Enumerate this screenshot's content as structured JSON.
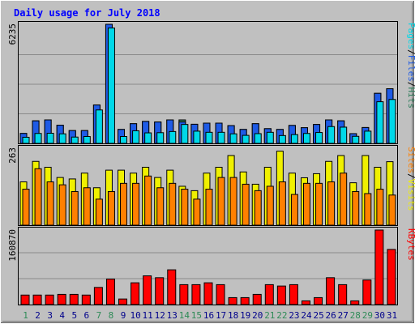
{
  "chart_data": [
    {
      "type": "bar",
      "panel": "hits-files-pages",
      "title": "Daily usage for July 2018",
      "categories": [
        "1",
        "2",
        "3",
        "4",
        "5",
        "6",
        "7",
        "8",
        "9",
        "10",
        "11",
        "12",
        "13",
        "14",
        "15",
        "16",
        "17",
        "18",
        "19",
        "20",
        "21",
        "22",
        "23",
        "24",
        "25",
        "26",
        "27",
        "28",
        "29",
        "30",
        "31"
      ],
      "weekend_categories": [
        "1",
        "7",
        "8",
        "14",
        "15",
        "21",
        "22",
        "28",
        "29"
      ],
      "ymax_label": "6235",
      "ylim": [
        0,
        6235
      ],
      "axis_label_parts": [
        "Pages",
        "/",
        "Files",
        "/",
        "Hits"
      ],
      "series": [
        {
          "name": "Hits",
          "color": "#2E7D5B",
          "values": [
            520,
            1180,
            1230,
            950,
            670,
            670,
            2010,
            6235,
            730,
            1030,
            1150,
            1120,
            1230,
            1230,
            1000,
            1060,
            1060,
            930,
            730,
            1030,
            770,
            730,
            940,
            820,
            990,
            1230,
            1180,
            510,
            830,
            2620,
            2860
          ]
        },
        {
          "name": "Files",
          "color": "#1E5BE6",
          "values": [
            520,
            1180,
            1230,
            950,
            670,
            670,
            2010,
            6235,
            730,
            1030,
            1150,
            1120,
            1230,
            1120,
            1000,
            1060,
            1060,
            930,
            730,
            1030,
            770,
            730,
            940,
            820,
            990,
            1230,
            1180,
            510,
            830,
            2620,
            2860
          ]
        },
        {
          "name": "Pages",
          "color": "#00D8E8",
          "values": [
            320,
            520,
            530,
            500,
            330,
            360,
            1750,
            6040,
            360,
            660,
            550,
            560,
            620,
            990,
            640,
            580,
            580,
            500,
            420,
            510,
            580,
            410,
            460,
            520,
            570,
            880,
            850,
            370,
            640,
            2180,
            2300
          ]
        }
      ]
    },
    {
      "type": "bar",
      "panel": "visits-sites",
      "ymax_label": "263",
      "ylim": [
        0,
        263
      ],
      "axis_label_parts": [
        "Sites",
        "/",
        "Visits"
      ],
      "series": [
        {
          "name": "Visits",
          "color": "#F0F000",
          "values": [
            148,
            218,
            198,
            163,
            158,
            178,
            128,
            188,
            188,
            178,
            198,
            163,
            188,
            133,
            118,
            178,
            198,
            238,
            182,
            140,
            198,
            253,
            178,
            162,
            176,
            218,
            238,
            145,
            238,
            198,
            217
          ]
        },
        {
          "name": "Sites",
          "color": "#FF8000",
          "values": [
            123,
            193,
            148,
            138,
            115,
            128,
            89,
            115,
            143,
            143,
            168,
            128,
            143,
            123,
            89,
            123,
            163,
            163,
            140,
            118,
            133,
            148,
            105,
            143,
            143,
            148,
            178,
            115,
            108,
            123,
            103
          ]
        }
      ]
    },
    {
      "type": "bar",
      "panel": "kbytes",
      "ymax_label": "160870",
      "ylim": [
        0,
        160870
      ],
      "axis_label_parts": [
        "KBytes"
      ],
      "series": [
        {
          "name": "KBytes",
          "color": "#FF0000",
          "values": [
            20500,
            20500,
            20500,
            22000,
            22000,
            20500,
            37000,
            55000,
            12000,
            47000,
            62000,
            58000,
            75000,
            43000,
            43000,
            47000,
            43000,
            15000,
            15000,
            22000,
            43000,
            40000,
            43000,
            8000,
            15000,
            58000,
            43000,
            8000,
            53000,
            160870,
            119000
          ]
        }
      ]
    }
  ],
  "colors": {
    "background": "#C0C0C0",
    "title": "#0000FF",
    "weekday_label": "#00008B",
    "weekend_label": "#2E8B57",
    "gridline": "#8A8A8A"
  }
}
